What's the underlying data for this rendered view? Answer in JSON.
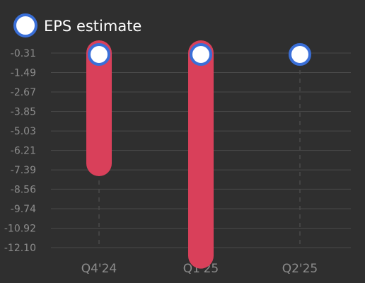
{
  "chart_data": {
    "type": "bar",
    "legend": {
      "label": "EPS estimate",
      "position": "top-left"
    },
    "categories": [
      "Q4'24",
      "Q1'25",
      "Q2'25"
    ],
    "series": [
      {
        "name": "EPS estimate",
        "values": [
          -0.31,
          -0.31,
          -0.31
        ]
      },
      {
        "values": [
          -7.0,
          -12.6,
          null
        ]
      }
    ],
    "yticks": [
      "-0.31",
      "-1.49",
      "-2.67",
      "-3.85",
      "-5.03",
      "-6.21",
      "-7.39",
      "-8.56",
      "-9.74",
      "-10.92",
      "-12.10"
    ],
    "ylim": [
      -12.1,
      -0.31
    ],
    "grid": true
  },
  "colors": {
    "background": "#2f2f2f",
    "bar": "#d9405a",
    "marker_fill": "#ffffff",
    "marker_stroke": "#3a6fd8",
    "grid": "#4a4a4a",
    "tick_text": "#8c8c8c"
  }
}
